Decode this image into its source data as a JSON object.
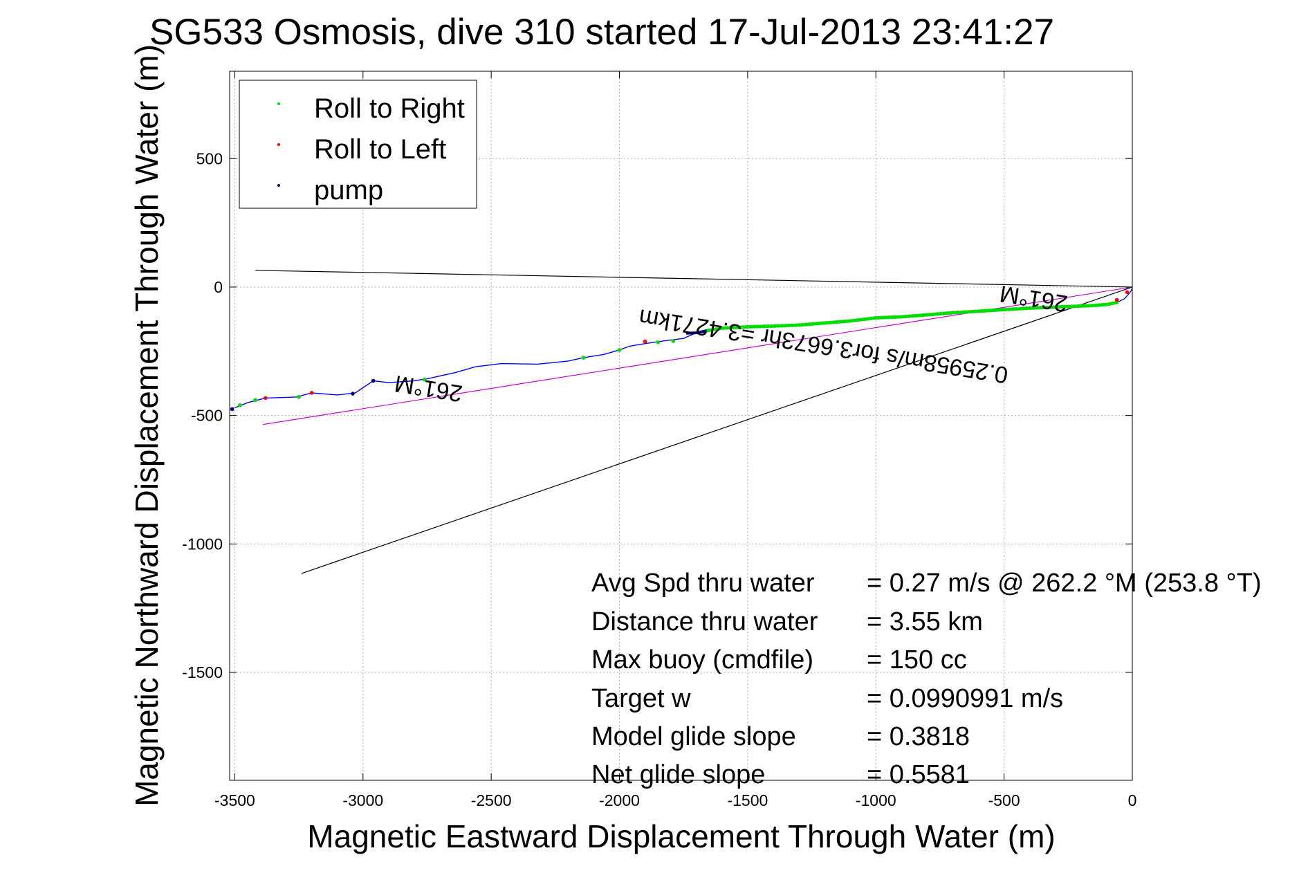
{
  "chart_data": {
    "type": "line",
    "title": "SG533 Osmosis, dive 310 started 17-Jul-2013 23:41:27",
    "xlabel": "Magnetic Eastward Displacement Through Water (m)",
    "ylabel": "Magnetic Northward Displacement Through Water (m)",
    "xlim": [
      -3520,
      0
    ],
    "ylim": [
      -1920,
      840
    ],
    "grid": true,
    "legend_position": "top-left",
    "x_ticks": [
      -3500,
      -3000,
      -2500,
      -2000,
      -1500,
      -1000,
      -500,
      0
    ],
    "y_ticks": [
      500,
      0,
      -500,
      -1000,
      -1500
    ],
    "x_tick_labels": [
      "-3500",
      "-3000",
      "-2500",
      "-2000",
      "-1500",
      "-1000",
      "-500",
      "0"
    ],
    "y_tick_labels": [
      "500",
      "0",
      "-500",
      "-1000",
      "-1500"
    ],
    "legend": [
      {
        "label": "Roll to Right",
        "color": "#00dd00"
      },
      {
        "label": "Roll to Left",
        "color": "#ff0000"
      },
      {
        "label": "pump",
        "color": "#000080"
      }
    ],
    "track": {
      "color": "#0000ff",
      "x": [
        0,
        -8,
        -30,
        -60,
        -100,
        -150,
        -200,
        -300,
        -400,
        -500,
        -600,
        -700,
        -800,
        -900,
        -1000,
        -1100,
        -1200,
        -1300,
        -1400,
        -1500,
        -1600,
        -1660,
        -1700,
        -1750,
        -1830,
        -1900,
        -1960,
        -2000,
        -2060,
        -2140,
        -2200,
        -2320,
        -2460,
        -2560,
        -2640,
        -2740,
        -2800,
        -2900,
        -2960,
        -3030,
        -3100,
        -3200,
        -3260,
        -3380,
        -3450,
        -3500
      ],
      "y": [
        -5,
        -20,
        -45,
        -60,
        -68,
        -72,
        -74,
        -78,
        -82,
        -88,
        -94,
        -100,
        -108,
        -116,
        -120,
        -132,
        -140,
        -148,
        -152,
        -155,
        -160,
        -170,
        -178,
        -200,
        -210,
        -220,
        -230,
        -245,
        -262,
        -275,
        -288,
        -300,
        -298,
        -310,
        -333,
        -355,
        -365,
        -372,
        -365,
        -412,
        -420,
        -412,
        -428,
        -432,
        -450,
        -470
      ]
    },
    "pump_segment": {
      "color": "#000080",
      "x": [
        -1660,
        -1700,
        -1740
      ],
      "y": [
        -170,
        -178,
        -180
      ]
    },
    "roll_right_points": {
      "color": "#00dd00",
      "x": [
        -1790,
        -1850,
        -2000,
        -2140,
        -2760,
        -3250,
        -3420,
        -3480
      ],
      "y": [
        -210,
        -215,
        -245,
        -275,
        -360,
        -428,
        -440,
        -460
      ]
    },
    "roll_left_points": {
      "color": "#ff0000",
      "x": [
        -20,
        -60,
        -1900,
        -3200,
        -3380
      ],
      "y": [
        -20,
        -50,
        -212,
        -412,
        -432
      ]
    },
    "pump_points": {
      "color": "#000080",
      "x": [
        -2960,
        -3040,
        -3510
      ],
      "y": [
        -365,
        -415,
        -475
      ]
    },
    "reference_lines": [
      {
        "color": "#000000",
        "x": [
          0,
          -3420
        ],
        "y": [
          0,
          65
        ]
      },
      {
        "color": "#000000",
        "x": [
          0,
          -3240
        ],
        "y": [
          0,
          -1115
        ]
      },
      {
        "color": "#cc00cc",
        "x": [
          0,
          -3390
        ],
        "y": [
          0,
          -535
        ]
      }
    ],
    "annotations": [
      {
        "text": "261°M",
        "x": -380,
        "y": -15,
        "rotation_deg": 189
      },
      {
        "text": "0.25958m/s for3.6673hr =3.4271km",
        "x": -1200,
        "y": -200,
        "rotation_deg": 189
      },
      {
        "text": "261°M",
        "x": -2740,
        "y": -365,
        "rotation_deg": 189
      }
    ],
    "stats": [
      {
        "label": "Avg Spd thru water",
        "value": "=  0.27 m/s @ 262.2 °M (253.8 °T)"
      },
      {
        "label": "Distance thru water",
        "value": "=  3.55 km"
      },
      {
        "label": "Max buoy (cmdfile)",
        "value": "= 150 cc"
      },
      {
        "label": "Target w",
        "value": "= 0.0990991 m/s"
      },
      {
        "label": "Model glide slope",
        "value": "= 0.3818"
      },
      {
        "label": "Net glide slope",
        "value": "= 0.5581"
      }
    ]
  }
}
